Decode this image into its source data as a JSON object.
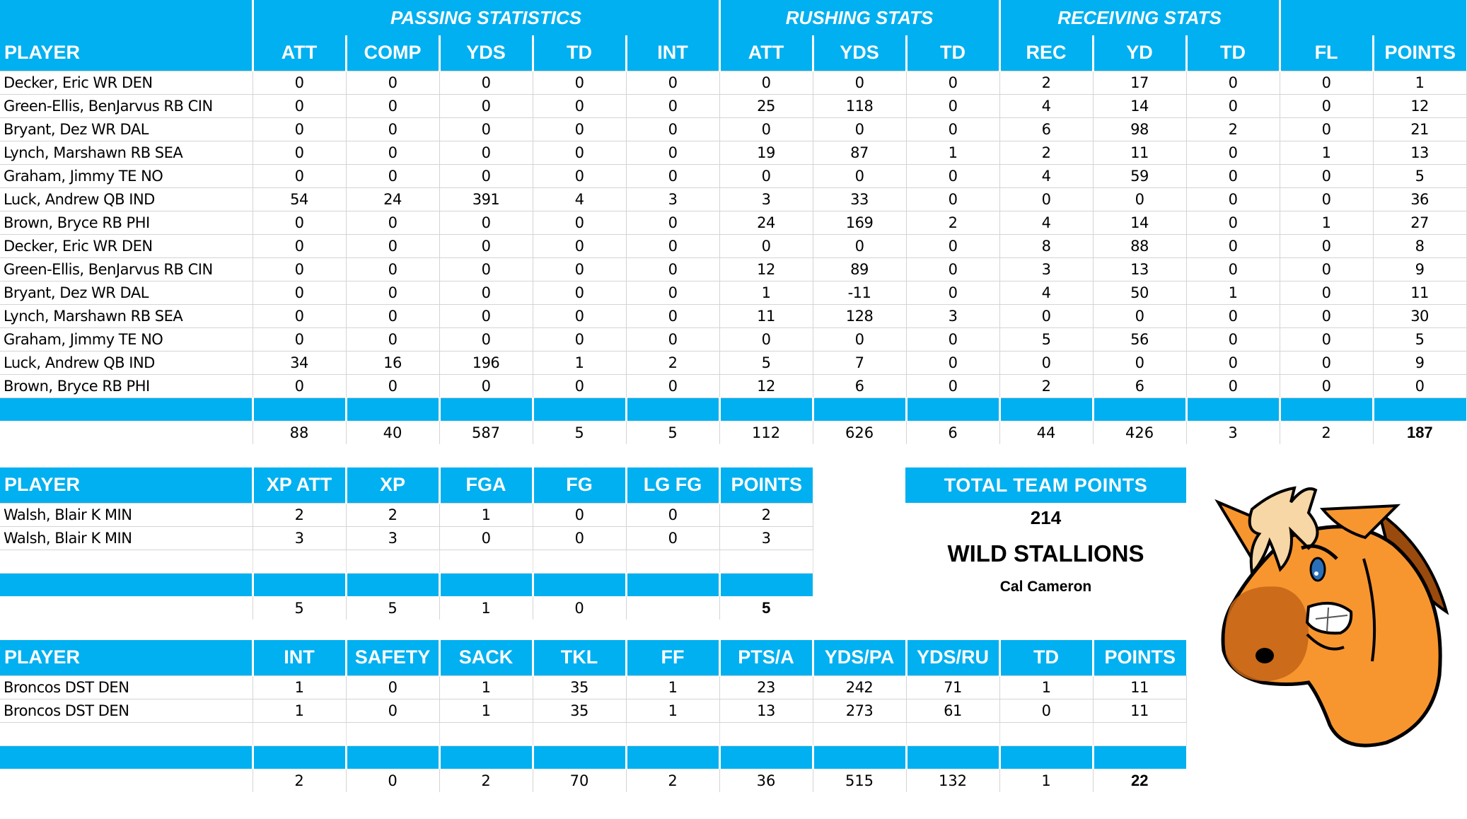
{
  "offense": {
    "group_headers": {
      "passing": "PASSING STATISTICS",
      "rushing": "RUSHING STATS",
      "receiving": "RECEIVING STATS"
    },
    "columns": [
      "PLAYER",
      "ATT",
      "COMP",
      "YDS",
      "TD",
      "INT",
      "ATT",
      "YDS",
      "TD",
      "REC",
      "YD",
      "TD",
      "FL",
      "POINTS"
    ],
    "rows": [
      [
        "Decker, Eric WR DEN",
        "0",
        "0",
        "0",
        "0",
        "0",
        "0",
        "0",
        "0",
        "2",
        "17",
        "0",
        "0",
        "1"
      ],
      [
        "Green-Ellis, BenJarvus RB CIN",
        "0",
        "0",
        "0",
        "0",
        "0",
        "25",
        "118",
        "0",
        "4",
        "14",
        "0",
        "0",
        "12"
      ],
      [
        "Bryant, Dez WR DAL",
        "0",
        "0",
        "0",
        "0",
        "0",
        "0",
        "0",
        "0",
        "6",
        "98",
        "2",
        "0",
        "21"
      ],
      [
        "Lynch, Marshawn RB SEA",
        "0",
        "0",
        "0",
        "0",
        "0",
        "19",
        "87",
        "1",
        "2",
        "11",
        "0",
        "1",
        "13"
      ],
      [
        "Graham, Jimmy TE NO",
        "0",
        "0",
        "0",
        "0",
        "0",
        "0",
        "0",
        "0",
        "4",
        "59",
        "0",
        "0",
        "5"
      ],
      [
        "Luck, Andrew QB IND",
        "54",
        "24",
        "391",
        "4",
        "3",
        "3",
        "33",
        "0",
        "0",
        "0",
        "0",
        "0",
        "36"
      ],
      [
        "Brown, Bryce RB PHI",
        "0",
        "0",
        "0",
        "0",
        "0",
        "24",
        "169",
        "2",
        "4",
        "14",
        "0",
        "1",
        "27"
      ],
      [
        "Decker, Eric WR DEN",
        "0",
        "0",
        "0",
        "0",
        "0",
        "0",
        "0",
        "0",
        "8",
        "88",
        "0",
        "0",
        "8"
      ],
      [
        "Green-Ellis, BenJarvus RB CIN",
        "0",
        "0",
        "0",
        "0",
        "0",
        "12",
        "89",
        "0",
        "3",
        "13",
        "0",
        "0",
        "9"
      ],
      [
        "Bryant, Dez WR DAL",
        "0",
        "0",
        "0",
        "0",
        "0",
        "1",
        "-11",
        "0",
        "4",
        "50",
        "1",
        "0",
        "11"
      ],
      [
        "Lynch, Marshawn RB SEA",
        "0",
        "0",
        "0",
        "0",
        "0",
        "11",
        "128",
        "3",
        "0",
        "0",
        "0",
        "0",
        "30"
      ],
      [
        "Graham, Jimmy TE NO",
        "0",
        "0",
        "0",
        "0",
        "0",
        "0",
        "0",
        "0",
        "5",
        "56",
        "0",
        "0",
        "5"
      ],
      [
        "Luck, Andrew QB IND",
        "34",
        "16",
        "196",
        "1",
        "2",
        "5",
        "7",
        "0",
        "0",
        "0",
        "0",
        "0",
        "9"
      ],
      [
        "Brown, Bryce RB PHI",
        "0",
        "0",
        "0",
        "0",
        "0",
        "12",
        "6",
        "0",
        "2",
        "6",
        "0",
        "0",
        "0"
      ]
    ],
    "totals": [
      "",
      "88",
      "40",
      "587",
      "5",
      "5",
      "112",
      "626",
      "6",
      "44",
      "426",
      "3",
      "2",
      "187"
    ]
  },
  "kicker": {
    "columns": [
      "PLAYER",
      "XP ATT",
      "XP",
      "FGA",
      "FG",
      "LG FG",
      "POINTS"
    ],
    "rows": [
      [
        "Walsh, Blair K MIN",
        "2",
        "2",
        "1",
        "0",
        "0",
        "2"
      ],
      [
        "Walsh, Blair K MIN",
        "3",
        "3",
        "0",
        "0",
        "0",
        "3"
      ]
    ],
    "totals": [
      "",
      "5",
      "5",
      "1",
      "0",
      "",
      "5"
    ]
  },
  "defense": {
    "columns": [
      "PLAYER",
      "INT",
      "SAFETY",
      "SACK",
      "TKL",
      "FF",
      "PTS/A",
      "YDS/PA",
      "YDS/RU",
      "TD",
      "POINTS"
    ],
    "rows": [
      [
        "Broncos DST DEN",
        "1",
        "0",
        "1",
        "35",
        "1",
        "23",
        "242",
        "71",
        "1",
        "11"
      ],
      [
        "Broncos DST DEN",
        "1",
        "0",
        "1",
        "35",
        "1",
        "13",
        "273",
        "61",
        "0",
        "11"
      ]
    ],
    "totals": [
      "",
      "2",
      "0",
      "2",
      "70",
      "2",
      "36",
      "515",
      "132",
      "1",
      "22"
    ]
  },
  "team": {
    "title": "TOTAL TEAM POINTS",
    "points": "214",
    "name": "WILD STALLIONS",
    "owner": "Cal Cameron",
    "mascot": "horse-head-mascot"
  },
  "colors": {
    "header_blue": "#00B0F0",
    "grid": "#D4D4D4",
    "header_text": "#FFFFFF"
  }
}
